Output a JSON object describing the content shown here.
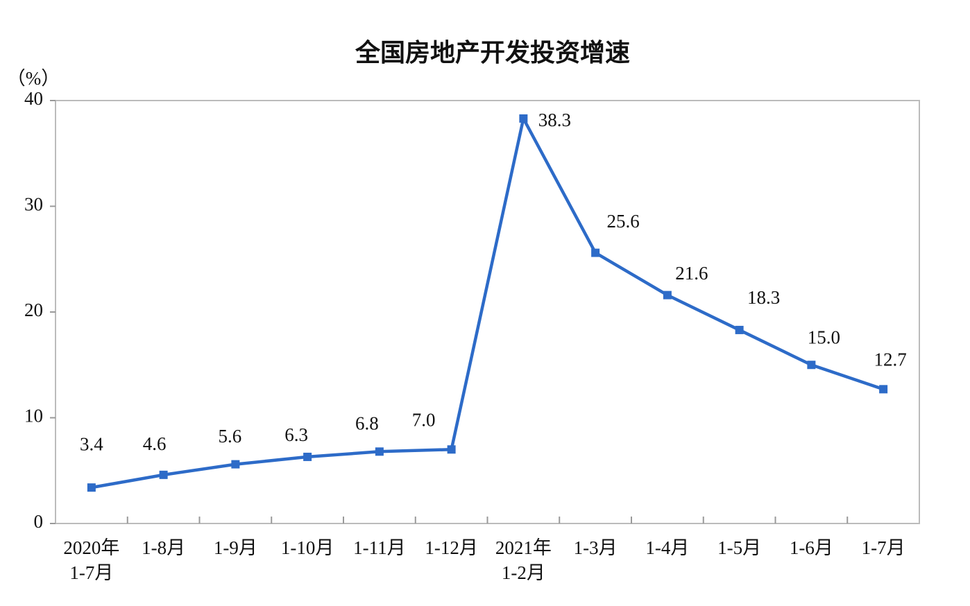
{
  "chart_data": {
    "type": "line",
    "title": "全国房地产开发投资增速",
    "y_label": "（%）",
    "categories": [
      [
        "2020年",
        "1-7月"
      ],
      [
        "1-8月"
      ],
      [
        "1-9月"
      ],
      [
        "1-10月"
      ],
      [
        "1-11月"
      ],
      [
        "1-12月"
      ],
      [
        "2021年",
        "1-2月"
      ],
      [
        "1-3月"
      ],
      [
        "1-4月"
      ],
      [
        "1-5月"
      ],
      [
        "1-6月"
      ],
      [
        "1-7月"
      ]
    ],
    "series": [
      {
        "name": "全国房地产开发投资增速",
        "color": "#2d6bc8",
        "values": [
          3.4,
          4.6,
          5.6,
          6.3,
          6.8,
          7.0,
          38.3,
          25.6,
          21.6,
          18.3,
          15.0,
          12.7
        ],
        "value_labels": [
          "3.4",
          "4.6",
          "5.6",
          "6.3",
          "6.8",
          "7.0",
          "38.3",
          "25.6",
          "21.6",
          "18.3",
          "15.0",
          "12.7"
        ]
      }
    ],
    "ylim": [
      0,
      40
    ],
    "yticks": [
      0,
      10,
      20,
      30,
      40
    ],
    "grid": false
  }
}
